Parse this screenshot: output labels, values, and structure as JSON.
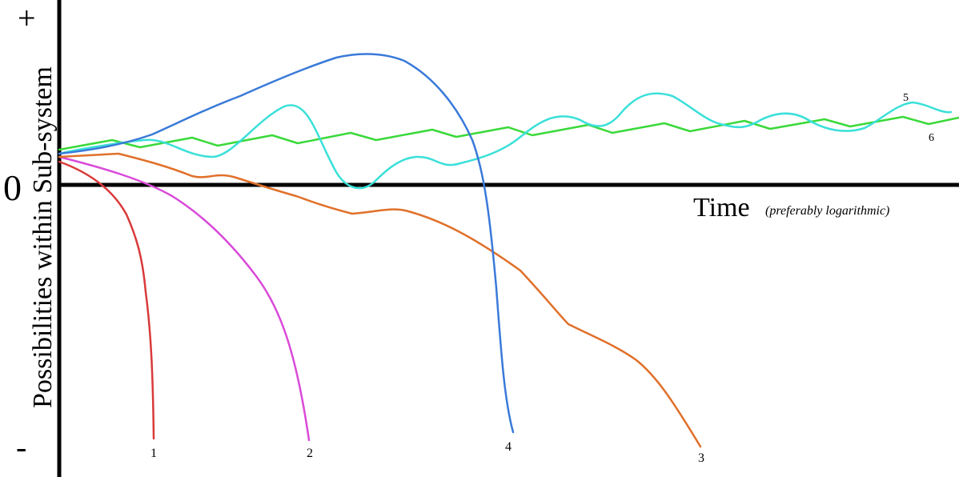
{
  "diagram": {
    "y_axis_label": "Possibilities within Sub-system",
    "y_plus": "+",
    "y_minus": "-",
    "y_zero": "0",
    "x_axis_label": "Time",
    "x_axis_note": "(preferably logarithmic)",
    "curves": [
      {
        "id": "1",
        "label": "1",
        "color": "#d93a3a"
      },
      {
        "id": "2",
        "label": "2",
        "color": "#d94ad9"
      },
      {
        "id": "3",
        "label": "3",
        "color": "#e0702a"
      },
      {
        "id": "4",
        "label": "4",
        "color": "#3a7ad9"
      },
      {
        "id": "5",
        "label": "5",
        "color": "#3ae0d9"
      },
      {
        "id": "6",
        "label": "6",
        "color": "#3ad93a"
      }
    ]
  }
}
